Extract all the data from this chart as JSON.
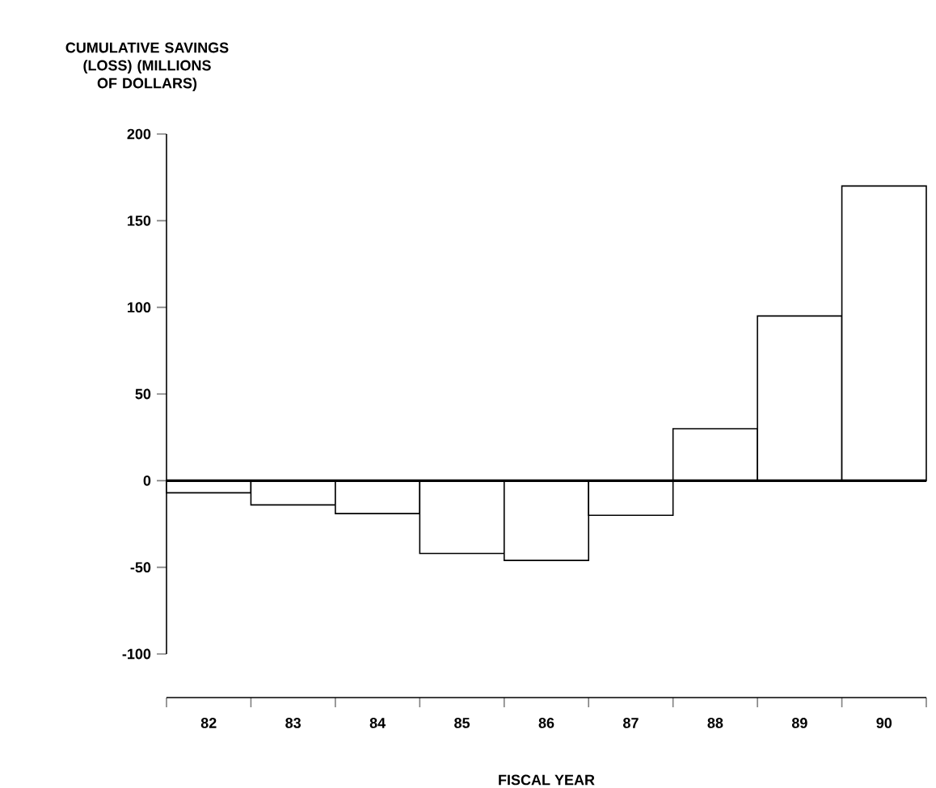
{
  "chart_data": {
    "type": "bar",
    "ylabel": "CUMULATIVE SAVINGS (LOSS) (MILLIONS OF DOLLARS)",
    "xlabel": "FISCAL YEAR",
    "categories": [
      "82",
      "83",
      "84",
      "85",
      "86",
      "87",
      "88",
      "89",
      "90"
    ],
    "values": [
      -7,
      -14,
      -19,
      -42,
      -46,
      -20,
      30,
      95,
      170
    ],
    "ref_lines": [
      {
        "axis": "y",
        "value": 0
      }
    ],
    "ylim": [
      -100,
      200
    ],
    "yticks": [
      -100,
      -50,
      0,
      50,
      100,
      150,
      200
    ]
  }
}
